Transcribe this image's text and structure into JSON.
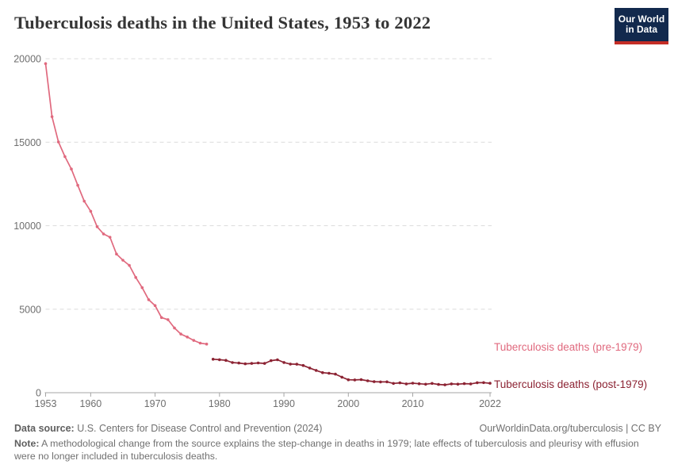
{
  "header": {
    "title": "Tuberculosis deaths in the United States, 1953 to 2022",
    "logo": {
      "line1": "Our World",
      "line2": "in Data",
      "bg": "#12294d",
      "bar": "#c42d26"
    }
  },
  "chart_data": {
    "type": "line",
    "title": "Tuberculosis deaths in the United States, 1953 to 2022",
    "xlabel": "",
    "ylabel": "",
    "xlim": [
      1953,
      2022
    ],
    "ylim": [
      0,
      20000
    ],
    "x_ticks": [
      1953,
      1960,
      1970,
      1980,
      1990,
      2000,
      2010,
      2022
    ],
    "y_ticks": [
      0,
      5000,
      10000,
      15000,
      20000
    ],
    "grid": "horizontal-dashed",
    "legend_position": "right-of-line-end",
    "series": [
      {
        "name": "Tuberculosis deaths (pre-1979)",
        "color": "#e0697e",
        "years": [
          1953,
          1954,
          1955,
          1956,
          1957,
          1958,
          1959,
          1960,
          1961,
          1962,
          1963,
          1964,
          1965,
          1966,
          1967,
          1968,
          1969,
          1970,
          1971,
          1972,
          1973,
          1974,
          1975,
          1976,
          1977,
          1978
        ],
        "values": [
          19707,
          16527,
          15016,
          14137,
          13390,
          12417,
          11474,
          10866,
          9938,
          9506,
          9311,
          8303,
          7934,
          7625,
          6901,
          6292,
          5567,
          5217,
          4501,
          4376,
          3875,
          3513,
          3333,
          3130,
          2968,
          2914
        ]
      },
      {
        "name": "Tuberculosis deaths (post-1979)",
        "color": "#8c2333",
        "years": [
          1979,
          1980,
          1981,
          1982,
          1983,
          1984,
          1985,
          1986,
          1987,
          1988,
          1989,
          1990,
          1991,
          1992,
          1993,
          1994,
          1995,
          1996,
          1997,
          1998,
          1999,
          2000,
          2001,
          2002,
          2003,
          2004,
          2005,
          2006,
          2007,
          2008,
          2009,
          2010,
          2011,
          2012,
          2013,
          2014,
          2015,
          2016,
          2017,
          2018,
          2019,
          2020,
          2021,
          2022
        ],
        "values": [
          2007,
          1978,
          1937,
          1807,
          1779,
          1729,
          1752,
          1782,
          1755,
          1921,
          1970,
          1810,
          1713,
          1705,
          1631,
          1478,
          1336,
          1202,
          1166,
          1112,
          930,
          776,
          764,
          784,
          711,
          662,
          648,
          652,
          554,
          590,
          529,
          569,
          539,
          510,
          555,
          493,
          470,
          528,
          515,
          542,
          526,
          600,
          602,
          565
        ]
      }
    ]
  },
  "footer": {
    "datasource_label": "Data source:",
    "datasource_text": " U.S. Centers for Disease Control and Prevention (2024)",
    "link_text": "OurWorldinData.org/tuberculosis | CC BY",
    "note_label": "Note:",
    "note_text": " A methodological change from the source explains the step-change in deaths in 1979; late effects of tuberculosis and pleurisy with effusion were no longer included in tuberculosis deaths."
  },
  "colors": {
    "pre_series": "#e0697e",
    "post_series": "#8c2333",
    "grid": "#dcdcdc",
    "axis": "#a5a5a5",
    "tick_label": "#6e6e6e",
    "title": "#353535",
    "footer_text": "#707070"
  }
}
